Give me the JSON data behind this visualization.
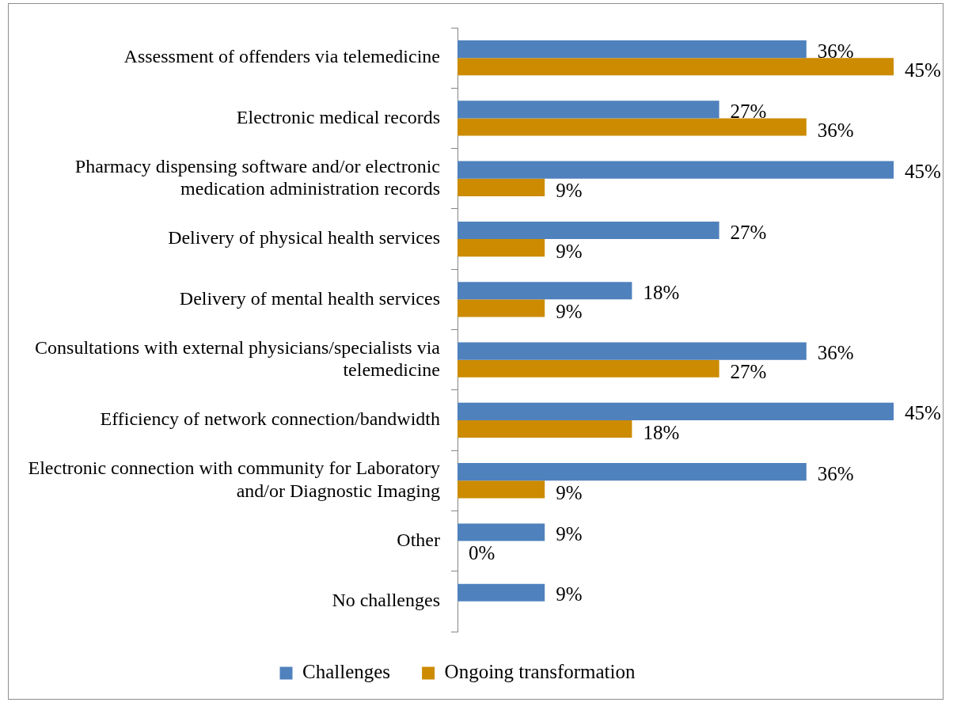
{
  "chart_data": {
    "type": "bar",
    "orientation": "horizontal",
    "legend": "bottom",
    "categories": [
      "Assessment of offenders via telemedicine",
      "Electronic medical records",
      "Pharmacy dispensing software and/or electronic medication administration records",
      "Delivery of physical health services",
      "Delivery of mental health services",
      "Consultations with external physicians/specialists via telemedicine",
      "Efficiency of network connection/bandwidth",
      "Electronic connection with community for Laboratory and/or Diagnostic Imaging",
      "Other",
      "No challenges"
    ],
    "series": [
      {
        "name": "Challenges",
        "color": "#4f81bd",
        "values": [
          36,
          27,
          45,
          27,
          18,
          36,
          45,
          36,
          9,
          9
        ],
        "value_labels": [
          "36%",
          "27%",
          "45%",
          "27%",
          "18%",
          "36%",
          "45%",
          "36%",
          "9%",
          "9%"
        ]
      },
      {
        "name": "Ongoing transformation",
        "color": "#cc8b00",
        "values": [
          45,
          36,
          9,
          9,
          9,
          27,
          18,
          9,
          0,
          null
        ],
        "value_labels": [
          "45%",
          "36%",
          "9%",
          "9%",
          "9%",
          "27%",
          "18%",
          "9%",
          "0%",
          null
        ]
      }
    ]
  }
}
